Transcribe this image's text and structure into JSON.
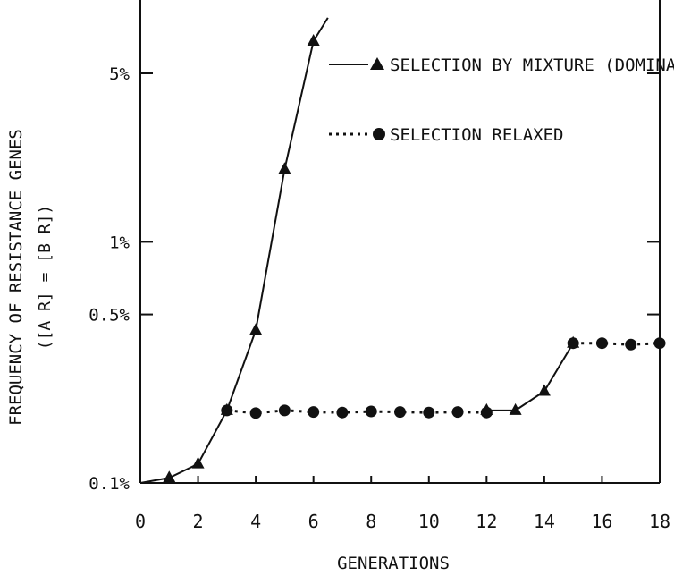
{
  "chart_data": {
    "type": "line",
    "xlabel": "GENERATIONS",
    "ylabel": "FREQUENCY OF RESISTANCE GENES",
    "ylabel_sub": "([A R] = [B R])",
    "y_scale": "log",
    "xlim": [
      0,
      18
    ],
    "ylim": [
      0.1,
      8.5
    ],
    "x_ticks": [
      0,
      2,
      4,
      6,
      8,
      10,
      12,
      14,
      16,
      18
    ],
    "x_tick_labels": [
      "0",
      "2",
      "4",
      "6",
      "8",
      "10",
      "12",
      "14",
      "16",
      "18"
    ],
    "y_ticks": [
      0.1,
      0.5,
      1,
      5
    ],
    "y_tick_labels": [
      "0.1%",
      "0.5%",
      "1%",
      "5%"
    ],
    "legend_position": "top-right",
    "series": [
      {
        "name": "SELECTION BY MIXTURE (DOMINANT RESISTANCE)",
        "line_style": "solid",
        "marker": "triangle",
        "segments": [
          {
            "x": [
              0,
              1,
              2,
              3,
              4,
              5,
              6,
              6.5
            ],
            "y": [
              0.1,
              0.105,
              0.12,
              0.2,
              0.43,
              2.0,
              6.8,
              8.5
            ]
          },
          {
            "x": [
              12,
              13,
              14,
              15
            ],
            "y": [
              0.2,
              0.2,
              0.24,
              0.38
            ]
          }
        ]
      },
      {
        "name": "SELECTION RELAXED",
        "line_style": "dotted",
        "marker": "circle",
        "segments": [
          {
            "x": [
              3,
              4,
              5,
              6,
              7,
              8,
              9,
              10,
              11,
              12
            ],
            "y": [
              0.2,
              0.195,
              0.2,
              0.197,
              0.196,
              0.198,
              0.197,
              0.196,
              0.197,
              0.196
            ]
          },
          {
            "x": [
              15,
              16,
              17,
              18
            ],
            "y": [
              0.38,
              0.38,
              0.375,
              0.38
            ]
          }
        ]
      }
    ]
  }
}
